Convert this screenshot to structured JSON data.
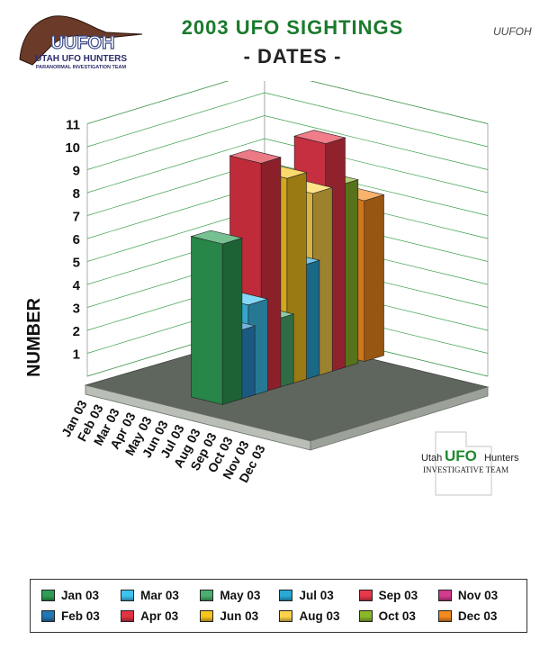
{
  "header": {
    "title": "2003 UFO SIGHTINGS",
    "subtitle": "- DATES -",
    "logo_left": {
      "main_text": "UUFOH",
      "line1": "UTAH UFO HUNTERS",
      "line2": "PARANORMAL INVESTIGATION TEAM"
    },
    "logo_right_text": "UUFOH"
  },
  "watermark": {
    "line1_a": "Utah",
    "line1_b": "UFO",
    "line1_c": "Hunters",
    "line2": "INVESTIGATIVE TEAM"
  },
  "chart_data": {
    "type": "bar",
    "title": "2003 UFO SIGHTINGS",
    "subtitle": "- DATES -",
    "xlabel": "",
    "ylabel": "NUMBER",
    "ylim": [
      0,
      11
    ],
    "yticks": [
      1,
      2,
      3,
      4,
      5,
      6,
      7,
      8,
      9,
      10,
      11
    ],
    "grid": true,
    "legend_position": "bottom",
    "categories": [
      "Jan 03",
      "Feb 03",
      "Mar 03",
      "Apr 03",
      "May 03",
      "Jun 03",
      "Jul 03",
      "Aug 03",
      "Sep 03",
      "Oct 03",
      "Nov 03",
      "Dec 03"
    ],
    "values": [
      7,
      3,
      4,
      10,
      3,
      9,
      5,
      8,
      10,
      8,
      0,
      7
    ],
    "colors": [
      "#2e9e55",
      "#2a8fd0",
      "#3ec3ef",
      "#e23343",
      "#4cae70",
      "#f7c51e",
      "#2aa8d6",
      "#fdd24a",
      "#e8374a",
      "#8ab82a",
      "#d43a8e",
      "#f58a1f"
    ]
  },
  "legend": {
    "items": [
      {
        "label": "Jan 03",
        "color": "#2e9e55"
      },
      {
        "label": "Feb 03",
        "color": "#2277b5"
      },
      {
        "label": "Mar 03",
        "color": "#3ec3ef"
      },
      {
        "label": "Apr 03",
        "color": "#e23343"
      },
      {
        "label": "May 03",
        "color": "#4cae70"
      },
      {
        "label": "Jun 03",
        "color": "#f7c51e"
      },
      {
        "label": "Jul 03",
        "color": "#2aa8d6"
      },
      {
        "label": "Aug 03",
        "color": "#fdd24a"
      },
      {
        "label": "Sep 03",
        "color": "#e8374a"
      },
      {
        "label": "Oct 03",
        "color": "#8ab82a"
      },
      {
        "label": "Nov 03",
        "color": "#d43a8e"
      },
      {
        "label": "Dec 03",
        "color": "#f58a1f"
      }
    ]
  }
}
